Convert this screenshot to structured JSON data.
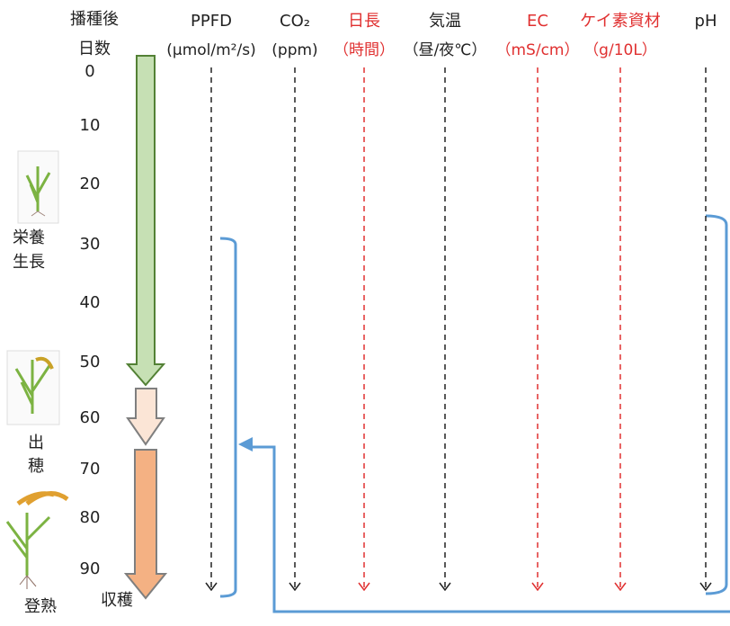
{
  "row_header": [
    "播種後",
    "日数"
  ],
  "columns": [
    {
      "name": "PPFD",
      "unit": "(μmol/m²/s)"
    },
    {
      "name": "CO₂",
      "unit": "(ppm)"
    },
    {
      "name": "日長",
      "unit": "（時間）"
    },
    {
      "name": "気温",
      "unit": "（昼/夜℃）"
    },
    {
      "name": "EC",
      "unit": "（mS/cm）"
    },
    {
      "name": "ケイ素資材",
      "unit": "（g/10L）"
    },
    {
      "name": "pH",
      "unit": ""
    }
  ],
  "days": [
    0,
    10,
    20,
    30,
    40,
    50,
    60,
    70,
    80,
    90
  ],
  "harvest": "収穫",
  "stages": [
    [
      "栄養",
      "生長"
    ],
    [
      "出",
      "穂"
    ],
    [
      "登熟"
    ]
  ]
}
